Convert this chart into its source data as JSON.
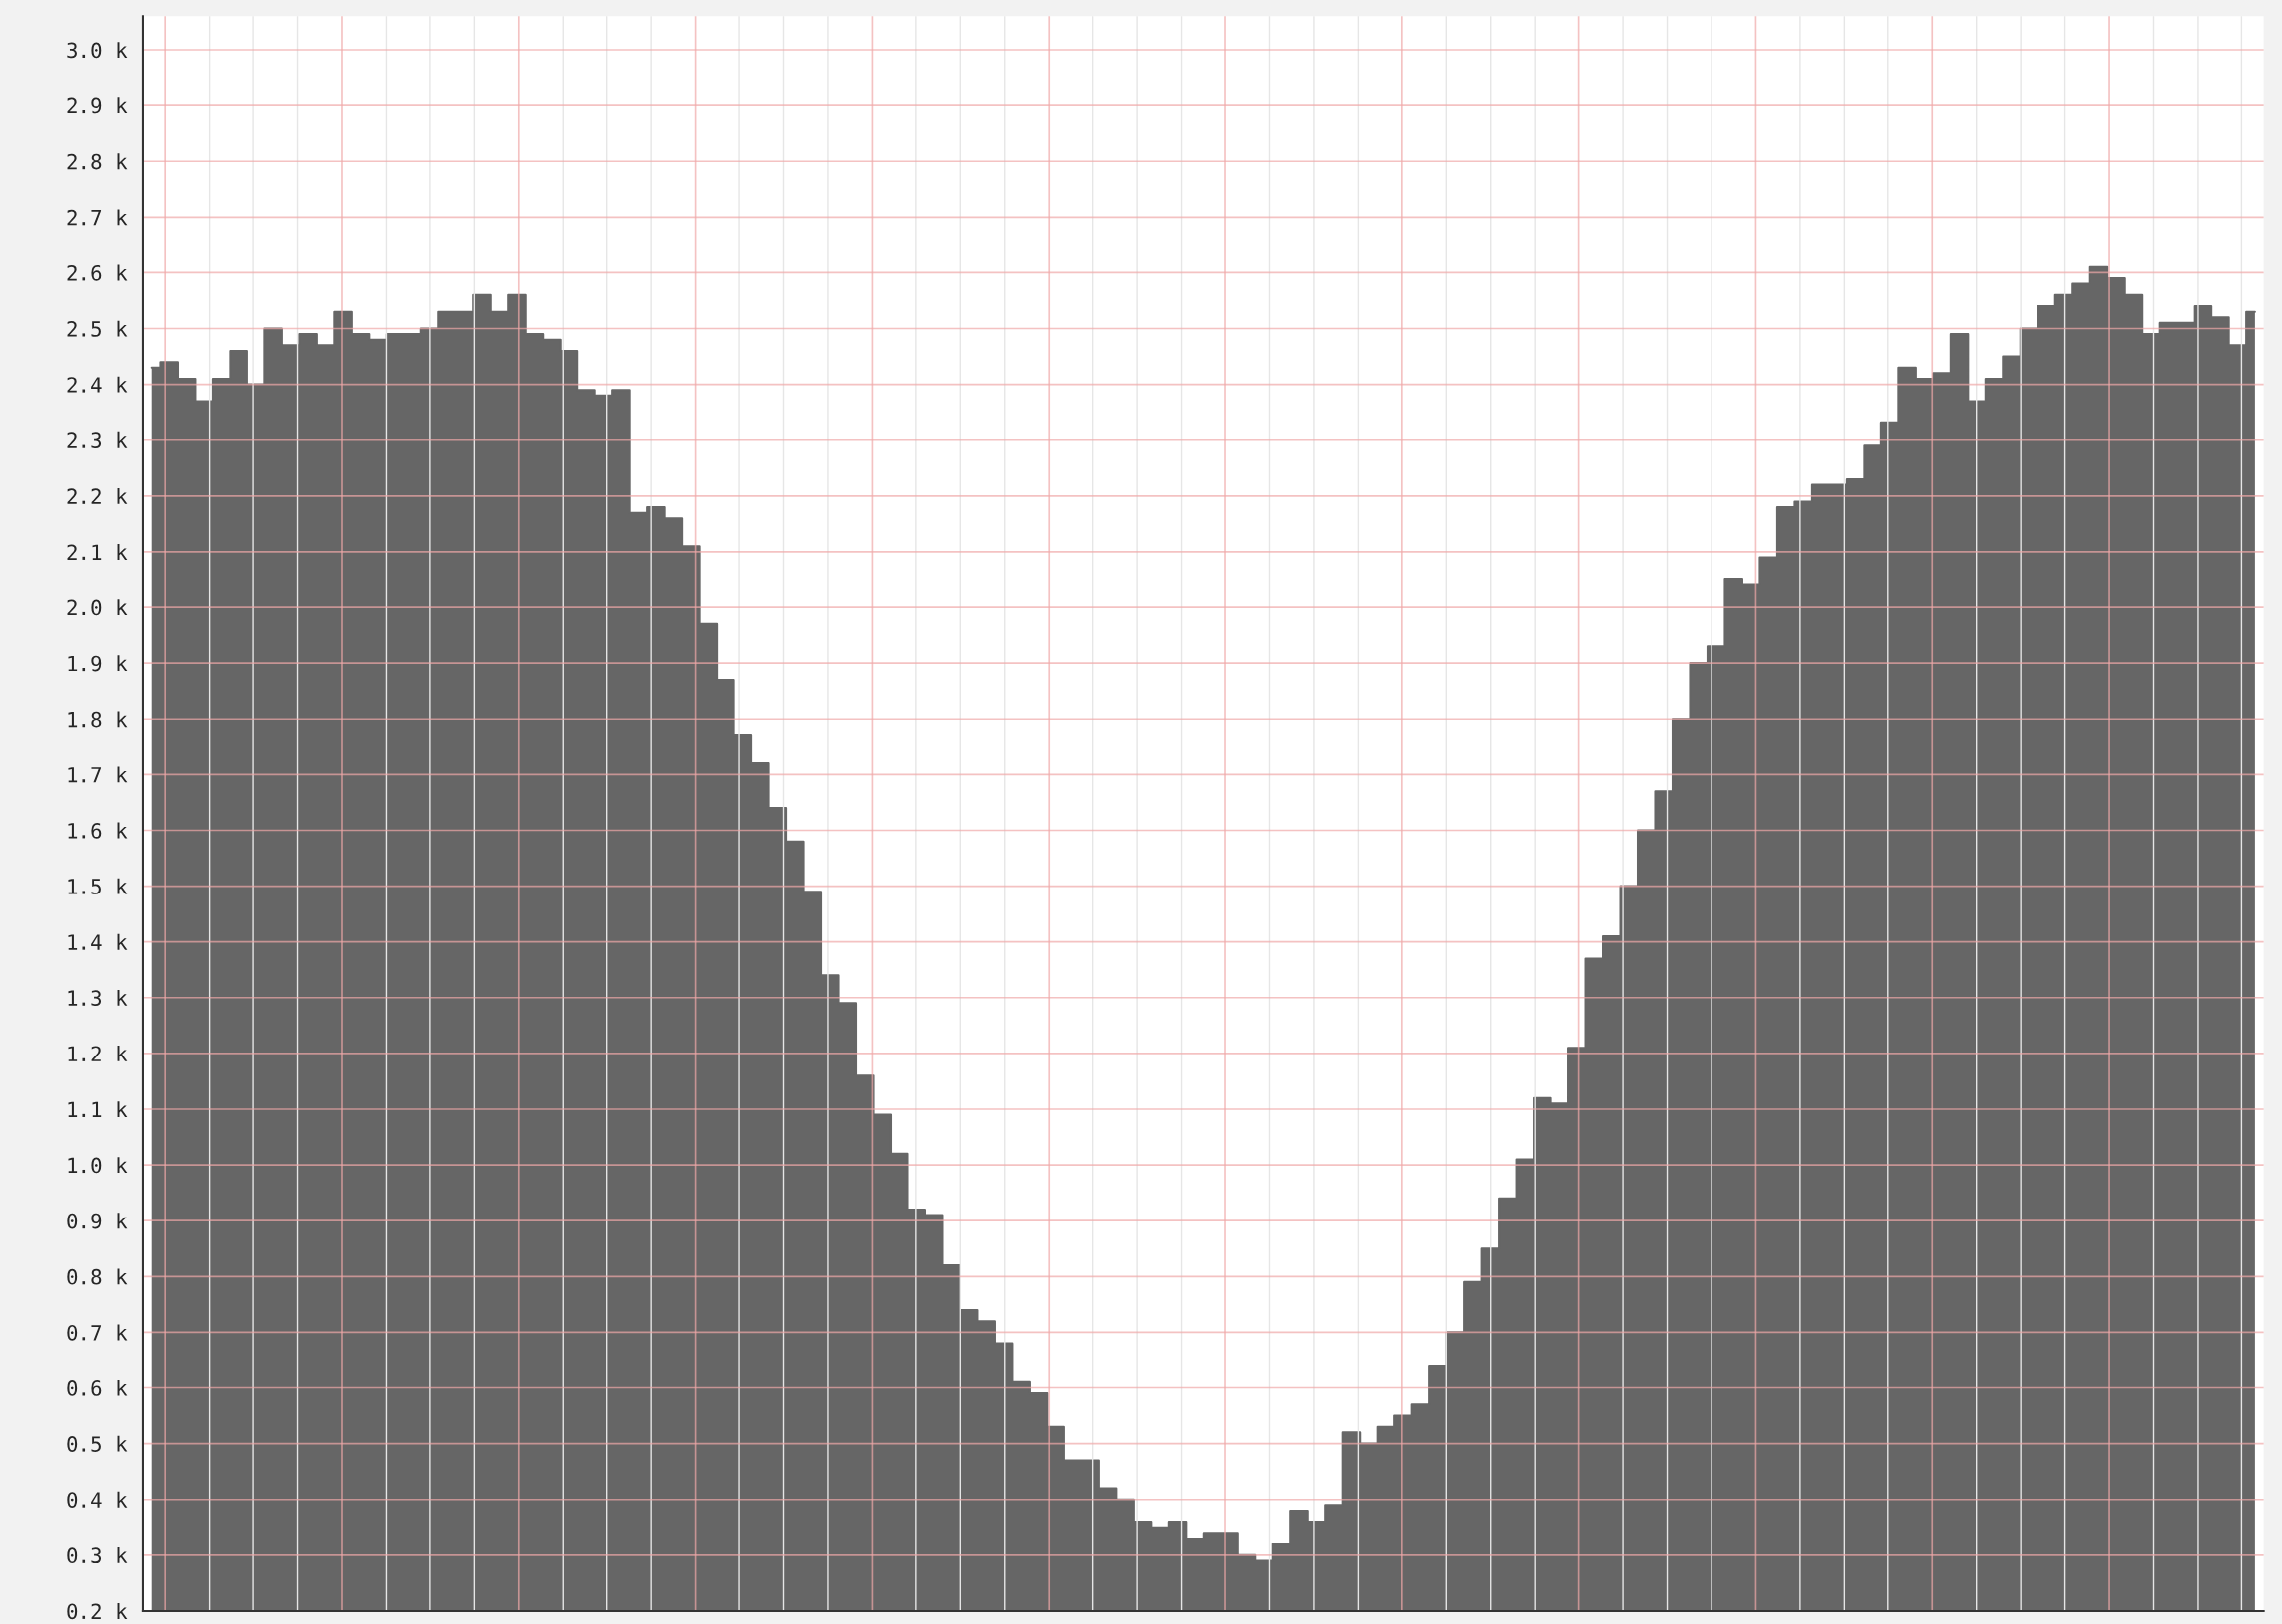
{
  "chart_data": {
    "type": "area",
    "categories": [
      null,
      null,
      null,
      null,
      null,
      null,
      null,
      null,
      null,
      null,
      null,
      null,
      null,
      null,
      null,
      null,
      null,
      null,
      null,
      null,
      null,
      null,
      null,
      null,
      null,
      null,
      null,
      null,
      null,
      null,
      null,
      null,
      null,
      null,
      null,
      null,
      null,
      null,
      null,
      null,
      null,
      null,
      null,
      null,
      null,
      null,
      null,
      null,
      null,
      null,
      null,
      null,
      null,
      null,
      null,
      null,
      null,
      null,
      null,
      null,
      null,
      null,
      null,
      null,
      null,
      null,
      null,
      null,
      null,
      null,
      null,
      null,
      null,
      null,
      null,
      null,
      null,
      null,
      null,
      null,
      null,
      null,
      null,
      null,
      null,
      null,
      null,
      null,
      null,
      null,
      null,
      null,
      null,
      null,
      null,
      null,
      null,
      null,
      null,
      null,
      null,
      null,
      null,
      null,
      null,
      null,
      null,
      null,
      null,
      null,
      null,
      null,
      null,
      null,
      null,
      null,
      null,
      null,
      null,
      null,
      null,
      null
    ],
    "series": [
      {
        "color": "#666666",
        "values": [
          2430,
          2440,
          2410,
          2370,
          2410,
          2460,
          2400,
          2500,
          2470,
          2490,
          2470,
          2530,
          2490,
          2480,
          2490,
          2490,
          2500,
          2530,
          2530,
          2560,
          2530,
          2560,
          2490,
          2480,
          2460,
          2390,
          2380,
          2390,
          2170,
          2180,
          2160,
          2110,
          1970,
          1870,
          1770,
          1720,
          1640,
          1580,
          1490,
          1340,
          1290,
          1160,
          1090,
          1020,
          920,
          910,
          820,
          740,
          720,
          680,
          610,
          590,
          530,
          470,
          470,
          420,
          400,
          360,
          350,
          360,
          330,
          340,
          340,
          300,
          290,
          320,
          380,
          360,
          390,
          520,
          500,
          530,
          550,
          570,
          640,
          700,
          790,
          850,
          940,
          1010,
          1120,
          1110,
          1210,
          1370,
          1410,
          1500,
          1600,
          1670,
          1800,
          1900,
          1930,
          2050,
          2040,
          2090,
          2180,
          2190,
          2220,
          2220,
          2230,
          2290,
          2330,
          2430,
          2410,
          2420,
          2490,
          2370,
          2410,
          2450,
          2500,
          2540,
          2560,
          2580,
          2610,
          2590,
          2560,
          2490,
          2510,
          2510,
          2540,
          2520,
          2470,
          2530
        ]
      }
    ],
    "ylim": [
      200,
      3060
    ],
    "yticks": [
      {
        "value": 200,
        "label": "0.2 k"
      },
      {
        "value": 300,
        "label": "0.3 k"
      },
      {
        "value": 400,
        "label": "0.4 k"
      },
      {
        "value": 500,
        "label": "0.5 k"
      },
      {
        "value": 600,
        "label": "0.6 k"
      },
      {
        "value": 700,
        "label": "0.7 k"
      },
      {
        "value": 800,
        "label": "0.8 k"
      },
      {
        "value": 900,
        "label": "0.9 k"
      },
      {
        "value": 1000,
        "label": "1.0 k"
      },
      {
        "value": 1100,
        "label": "1.1 k"
      },
      {
        "value": 1200,
        "label": "1.2 k"
      },
      {
        "value": 1300,
        "label": "1.3 k"
      },
      {
        "value": 1400,
        "label": "1.4 k"
      },
      {
        "value": 1500,
        "label": "1.5 k"
      },
      {
        "value": 1600,
        "label": "1.6 k"
      },
      {
        "value": 1700,
        "label": "1.7 k"
      },
      {
        "value": 1800,
        "label": "1.8 k"
      },
      {
        "value": 1900,
        "label": "1.9 k"
      },
      {
        "value": 2000,
        "label": "2.0 k"
      },
      {
        "value": 2100,
        "label": "2.1 k"
      },
      {
        "value": 2200,
        "label": "2.2 k"
      },
      {
        "value": 2300,
        "label": "2.3 k"
      },
      {
        "value": 2400,
        "label": "2.4 k"
      },
      {
        "value": 2500,
        "label": "2.5 k"
      },
      {
        "value": 2600,
        "label": "2.6 k"
      },
      {
        "value": 2700,
        "label": "2.7 k"
      },
      {
        "value": 2800,
        "label": "2.8 k"
      },
      {
        "value": 2900,
        "label": "2.9 k"
      },
      {
        "value": 3000,
        "label": "3.0 k"
      }
    ],
    "grid": true,
    "tick_labels": "y"
  }
}
